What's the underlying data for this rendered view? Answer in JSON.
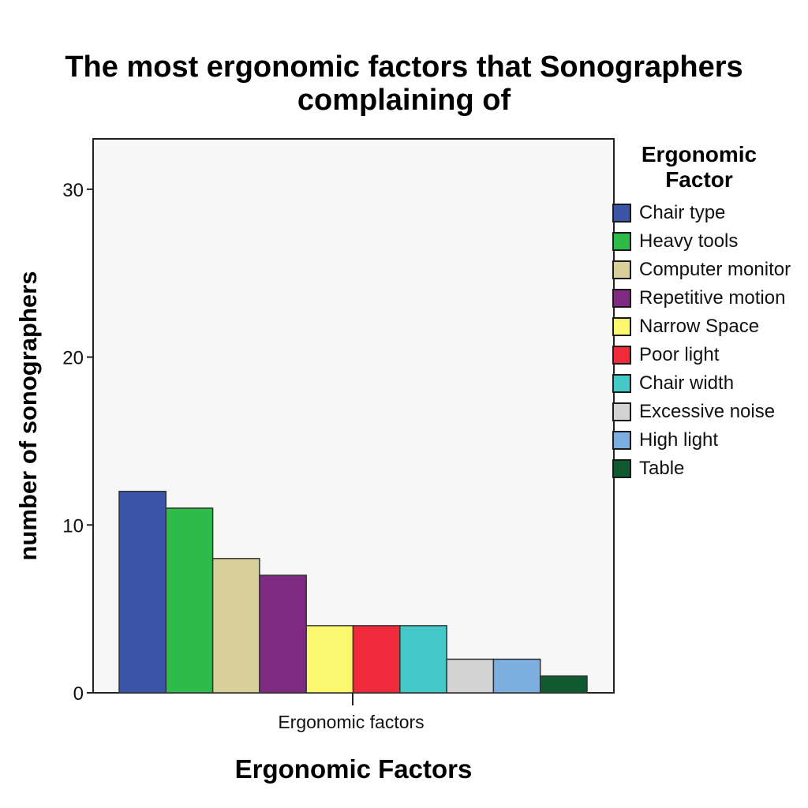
{
  "chart_data": {
    "type": "bar",
    "title": "The most ergonomic factors that Sonographers complaining of",
    "title_lines": [
      "The most ergonomic factors that Sonographers",
      "complaining of"
    ],
    "xlabel": "Ergonomic Factors",
    "ylabel": "number of sonographers",
    "categories": [
      "Ergonomic factors"
    ],
    "ylim": [
      0,
      33
    ],
    "yticks": [
      0,
      10,
      20,
      30
    ],
    "grid": false,
    "legend": {
      "title": "Ergonomic Factor",
      "title_lines": [
        "Ergonomic",
        "Factor"
      ],
      "placement": "right"
    },
    "series": [
      {
        "name": "Chair type",
        "values": [
          12
        ],
        "color": "#3a55a8"
      },
      {
        "name": "Heavy tools",
        "values": [
          11
        ],
        "color": "#2fbb4a"
      },
      {
        "name": "Computer monitor",
        "values": [
          8
        ],
        "color": "#d8d09a"
      },
      {
        "name": "Repetitive motion",
        "values": [
          7
        ],
        "color": "#7d2a80"
      },
      {
        "name": "Narrow Space",
        "values": [
          4
        ],
        "color": "#fbf870"
      },
      {
        "name": "Poor light",
        "values": [
          4
        ],
        "color": "#ef2b3b"
      },
      {
        "name": "Chair width",
        "values": [
          4
        ],
        "color": "#45c8c8"
      },
      {
        "name": "Excessive noise",
        "values": [
          2
        ],
        "color": "#d3d3d3"
      },
      {
        "name": "High light",
        "values": [
          2
        ],
        "color": "#7daee0"
      },
      {
        "name": "Table",
        "values": [
          1
        ],
        "color": "#0f5a30"
      }
    ],
    "plot_background": "#f7f7f7"
  }
}
